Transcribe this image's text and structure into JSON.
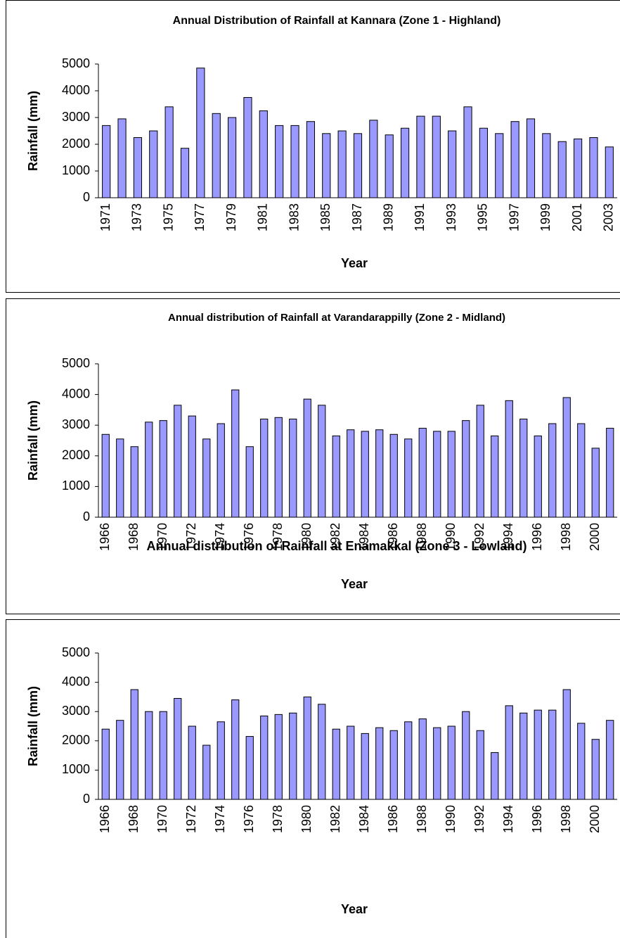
{
  "chart_data": [
    {
      "type": "bar",
      "title": "Annual Distribution of Rainfall at Kannara (Zone 1 - Highland)",
      "xlabel": "Year",
      "ylabel": "Rainfall (mm)",
      "categories": [
        "1971",
        null,
        "1973",
        null,
        "1975",
        null,
        "1977",
        null,
        "1979",
        null,
        "1981",
        null,
        "1983",
        null,
        "1985",
        null,
        "1987",
        null,
        "1989",
        null,
        "1991",
        null,
        "1993",
        null,
        "1995",
        null,
        "1997",
        null,
        "1999",
        null,
        "2001",
        null,
        "2003"
      ],
      "values": [
        2700,
        2950,
        2250,
        2500,
        3400,
        1850,
        4850,
        3150,
        3000,
        3750,
        3250,
        2700,
        2700,
        2850,
        2400,
        2500,
        2400,
        2900,
        2350,
        2600,
        3050,
        3050,
        2500,
        3400,
        2600,
        2400,
        2850,
        2950,
        2400,
        2100,
        2200,
        2250,
        1900
      ],
      "color": "#9999ff",
      "ylim": [
        0,
        5000
      ],
      "yticks": [
        0,
        1000,
        2000,
        3000,
        4000,
        5000
      ]
    },
    {
      "type": "bar",
      "title": "Annual distribution of Rainfall at Varandarappilly (Zone 2 - Midland)",
      "xlabel": "Year",
      "ylabel": "Rainfall (mm)",
      "categories": [
        "1966",
        null,
        "1968",
        null,
        "1970",
        null,
        "1972",
        null,
        "1974",
        null,
        "1976",
        null,
        "1978",
        null,
        "1980",
        null,
        "1982",
        null,
        "1984",
        null,
        "1986",
        null,
        "1988",
        null,
        "1990",
        null,
        "1992",
        null,
        "1994",
        null,
        "1996",
        null,
        "1998",
        null,
        "2000",
        null
      ],
      "values": [
        2700,
        2550,
        2300,
        3100,
        3150,
        3650,
        3300,
        2550,
        3050,
        4150,
        2300,
        3200,
        3250,
        3200,
        3850,
        3650,
        2650,
        2850,
        2800,
        2850,
        2700,
        2550,
        2900,
        2800,
        2800,
        3150,
        3650,
        2650,
        3800,
        3200,
        2650,
        3050,
        3900,
        3050,
        2250,
        2900
      ],
      "color": "#9999ff",
      "ylim": [
        0,
        5000
      ],
      "yticks": [
        0,
        1000,
        2000,
        3000,
        4000,
        5000
      ]
    },
    {
      "type": "bar",
      "title": "Annual distribution of Rainfall at Enamakkal (Zone 3 - Lowland)",
      "xlabel": "Year",
      "ylabel": "Rainfall (mm)",
      "categories": [
        "1966",
        null,
        "1968",
        null,
        "1970",
        null,
        "1972",
        null,
        "1974",
        null,
        "1976",
        null,
        "1978",
        null,
        "1980",
        null,
        "1982",
        null,
        "1984",
        null,
        "1986",
        null,
        "1988",
        null,
        "1990",
        null,
        "1992",
        null,
        "1994",
        null,
        "1996",
        null,
        "1998",
        null,
        "2000",
        null
      ],
      "values": [
        2400,
        2700,
        3750,
        3000,
        3000,
        3450,
        2500,
        1850,
        2650,
        3400,
        2150,
        2850,
        2900,
        2950,
        3500,
        3250,
        2400,
        2500,
        2250,
        2450,
        2350,
        2650,
        2750,
        2450,
        2500,
        3000,
        2350,
        1600,
        3200,
        2950,
        3050,
        3050,
        3750,
        2600,
        2050,
        2700
      ],
      "color": "#9999ff",
      "ylim": [
        0,
        5000
      ],
      "yticks": [
        0,
        1000,
        2000,
        3000,
        4000,
        5000
      ]
    }
  ]
}
